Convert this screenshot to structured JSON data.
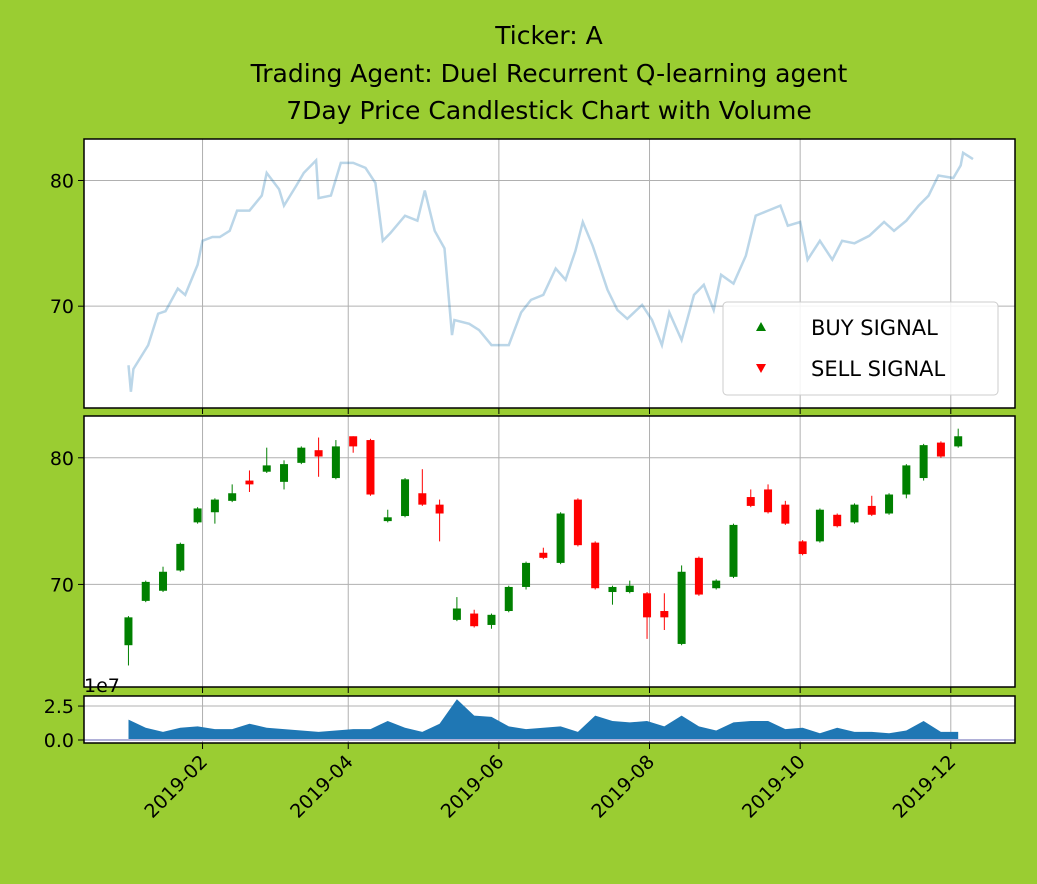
{
  "title": [
    "Ticker: A",
    "Trading Agent: Duel Recurrent Q-learning agent",
    "7Day Price Candlestick Chart with Volume"
  ],
  "chart_data": [
    {
      "type": "line",
      "x": [
        "2019-01-02",
        "2019-01-03",
        "2019-01-04",
        "2019-01-10",
        "2019-01-14",
        "2019-01-17",
        "2019-01-22",
        "2019-01-25",
        "2019-01-30",
        "2019-02-01",
        "2019-02-05",
        "2019-02-08",
        "2019-02-12",
        "2019-02-15",
        "2019-02-20",
        "2019-02-25",
        "2019-02-27",
        "2019-03-04",
        "2019-03-06",
        "2019-03-11",
        "2019-03-14",
        "2019-03-19",
        "2019-03-20",
        "2019-03-25",
        "2019-03-29",
        "2019-04-03",
        "2019-04-08",
        "2019-04-12",
        "2019-04-15",
        "2019-04-18",
        "2019-04-24",
        "2019-04-29",
        "2019-05-02",
        "2019-05-06",
        "2019-05-10",
        "2019-05-13",
        "2019-05-14",
        "2019-05-20",
        "2019-05-24",
        "2019-05-29",
        "2019-06-05",
        "2019-06-10",
        "2019-06-14",
        "2019-06-19",
        "2019-06-24",
        "2019-06-28",
        "2019-07-02",
        "2019-07-05",
        "2019-07-09",
        "2019-07-15",
        "2019-07-19",
        "2019-07-23",
        "2019-07-29",
        "2019-08-02",
        "2019-08-06",
        "2019-08-09",
        "2019-08-14",
        "2019-08-19",
        "2019-08-23",
        "2019-08-27",
        "2019-08-30",
        "2019-09-04",
        "2019-09-09",
        "2019-09-13",
        "2019-09-18",
        "2019-09-23",
        "2019-09-26",
        "2019-10-01",
        "2019-10-04",
        "2019-10-09",
        "2019-10-14",
        "2019-10-18",
        "2019-10-23",
        "2019-10-29",
        "2019-11-04",
        "2019-11-08",
        "2019-11-13",
        "2019-11-18",
        "2019-11-22",
        "2019-11-26",
        "2019-12-02",
        "2019-12-05",
        "2019-12-06",
        "2019-12-10"
      ],
      "values": [
        65.3,
        63.2,
        65.0,
        66.9,
        69.4,
        69.6,
        71.4,
        70.9,
        73.3,
        75.2,
        75.5,
        75.5,
        76.0,
        77.6,
        77.6,
        78.8,
        80.6,
        79.3,
        78.0,
        79.6,
        80.6,
        81.6,
        78.6,
        78.8,
        81.4,
        81.4,
        81.0,
        79.8,
        75.2,
        75.8,
        77.2,
        76.8,
        79.2,
        76.0,
        74.6,
        67.7,
        68.9,
        68.6,
        68.1,
        66.9,
        66.9,
        69.5,
        70.5,
        70.9,
        73.0,
        72.1,
        74.4,
        76.7,
        74.8,
        71.3,
        69.7,
        69.0,
        70.1,
        68.9,
        66.9,
        69.5,
        67.3,
        70.9,
        71.7,
        69.7,
        72.5,
        71.8,
        74.0,
        77.2,
        77.6,
        78.0,
        76.4,
        76.7,
        73.7,
        75.2,
        73.7,
        75.2,
        75.0,
        75.6,
        76.7,
        76.0,
        76.8,
        78.0,
        78.8,
        80.4,
        80.2,
        81.2,
        82.2,
        81.7
      ],
      "color": "#1f77b4",
      "alpha": 0.3,
      "xlim": [
        "2018-12-15",
        "2019-12-27"
      ],
      "ylim": [
        61.9,
        83.3
      ],
      "yticks": [
        70,
        80
      ],
      "grid": true,
      "legend": [
        {
          "name": "BUY SIGNAL",
          "color": "green",
          "marker": "^"
        },
        {
          "name": "SELL SIGNAL",
          "color": "red",
          "marker": "v"
        }
      ],
      "legend_loc": "lower right"
    },
    {
      "type": "candlestick",
      "x": [
        "2019-01-02",
        "2019-01-09",
        "2019-01-16",
        "2019-01-23",
        "2019-01-30",
        "2019-02-06",
        "2019-02-13",
        "2019-02-20",
        "2019-02-27",
        "2019-03-06",
        "2019-03-13",
        "2019-03-20",
        "2019-03-27",
        "2019-04-03",
        "2019-04-10",
        "2019-04-17",
        "2019-04-24",
        "2019-05-01",
        "2019-05-08",
        "2019-05-15",
        "2019-05-22",
        "2019-05-29",
        "2019-06-05",
        "2019-06-12",
        "2019-06-19",
        "2019-06-26",
        "2019-07-03",
        "2019-07-10",
        "2019-07-17",
        "2019-07-24",
        "2019-07-31",
        "2019-08-07",
        "2019-08-14",
        "2019-08-21",
        "2019-08-28",
        "2019-09-04",
        "2019-09-11",
        "2019-09-18",
        "2019-09-25",
        "2019-10-02",
        "2019-10-09",
        "2019-10-16",
        "2019-10-23",
        "2019-10-30",
        "2019-11-06",
        "2019-11-13",
        "2019-11-20",
        "2019-11-27",
        "2019-12-04"
      ],
      "open": [
        65.2,
        68.7,
        69.5,
        71.1,
        74.9,
        75.7,
        76.6,
        78.2,
        78.9,
        78.1,
        79.6,
        80.6,
        78.4,
        81.7,
        81.4,
        75.0,
        75.4,
        77.2,
        76.3,
        67.2,
        67.7,
        66.8,
        67.9,
        69.8,
        72.5,
        71.7,
        76.7,
        73.3,
        69.4,
        69.4,
        69.3,
        67.9,
        65.3,
        72.1,
        69.7,
        70.6,
        76.9,
        77.5,
        76.3,
        73.4,
        73.4,
        75.5,
        74.9,
        76.2,
        75.6,
        77.1,
        78.4,
        81.2,
        80.9
      ],
      "high": [
        67.5,
        70.3,
        71.4,
        73.3,
        76.1,
        76.8,
        77.9,
        79.0,
        80.8,
        79.8,
        80.9,
        81.6,
        81.4,
        81.7,
        81.5,
        75.9,
        78.4,
        79.1,
        76.7,
        69.0,
        68.0,
        67.7,
        69.9,
        71.8,
        72.9,
        75.7,
        76.8,
        73.4,
        69.9,
        70.3,
        69.4,
        69.3,
        71.5,
        72.2,
        70.4,
        74.8,
        77.5,
        77.9,
        76.6,
        73.5,
        76.0,
        75.6,
        76.4,
        77.0,
        77.2,
        79.5,
        81.1,
        81.3,
        82.3
      ],
      "low": [
        63.6,
        68.6,
        69.4,
        71.0,
        74.8,
        74.8,
        76.5,
        77.3,
        78.8,
        77.5,
        79.5,
        78.5,
        78.3,
        80.4,
        77.0,
        74.9,
        75.3,
        76.2,
        73.4,
        67.1,
        66.6,
        66.5,
        67.8,
        69.6,
        72.0,
        71.6,
        73.0,
        69.6,
        68.4,
        69.3,
        65.7,
        66.4,
        65.2,
        69.1,
        69.6,
        70.5,
        76.1,
        75.6,
        74.7,
        72.3,
        73.3,
        74.5,
        74.8,
        75.4,
        75.5,
        76.8,
        78.2,
        80.0,
        80.8
      ],
      "close": [
        67.4,
        70.2,
        71.0,
        73.2,
        76.0,
        76.7,
        77.2,
        77.9,
        79.4,
        79.5,
        80.8,
        80.1,
        80.9,
        80.9,
        77.1,
        75.3,
        78.3,
        76.3,
        75.6,
        68.1,
        66.7,
        67.6,
        69.8,
        71.7,
        72.1,
        75.6,
        73.1,
        69.7,
        69.8,
        69.9,
        67.4,
        67.4,
        71.0,
        69.2,
        70.3,
        74.7,
        76.2,
        75.7,
        74.8,
        72.4,
        75.9,
        74.6,
        76.3,
        75.5,
        77.1,
        79.4,
        81.0,
        80.1,
        81.7
      ],
      "up_color": "green",
      "down_color": "red",
      "xlim": [
        "2018-12-15",
        "2019-12-27"
      ],
      "ylim": [
        61.9,
        83.3
      ],
      "yticks": [
        70,
        80
      ],
      "grid": true
    },
    {
      "type": "area",
      "x": [
        "2019-01-02",
        "2019-01-09",
        "2019-01-16",
        "2019-01-23",
        "2019-01-30",
        "2019-02-06",
        "2019-02-13",
        "2019-02-20",
        "2019-02-27",
        "2019-03-06",
        "2019-03-13",
        "2019-03-20",
        "2019-03-27",
        "2019-04-03",
        "2019-04-10",
        "2019-04-17",
        "2019-04-24",
        "2019-05-01",
        "2019-05-08",
        "2019-05-15",
        "2019-05-22",
        "2019-05-29",
        "2019-06-05",
        "2019-06-12",
        "2019-06-19",
        "2019-06-26",
        "2019-07-03",
        "2019-07-10",
        "2019-07-17",
        "2019-07-24",
        "2019-07-31",
        "2019-08-07",
        "2019-08-14",
        "2019-08-21",
        "2019-08-28",
        "2019-09-04",
        "2019-09-11",
        "2019-09-18",
        "2019-09-25",
        "2019-10-02",
        "2019-10-09",
        "2019-10-16",
        "2019-10-23",
        "2019-10-30",
        "2019-11-06",
        "2019-11-13",
        "2019-11-20",
        "2019-11-27",
        "2019-12-04"
      ],
      "values": [
        1.5,
        0.9,
        0.6,
        0.9,
        1.0,
        0.8,
        0.8,
        1.2,
        0.9,
        0.8,
        0.7,
        0.6,
        0.7,
        0.8,
        0.8,
        1.4,
        0.9,
        0.6,
        1.2,
        3.0,
        1.8,
        1.7,
        1.0,
        0.8,
        0.9,
        1.0,
        0.6,
        1.8,
        1.4,
        1.3,
        1.4,
        1.0,
        1.8,
        1.0,
        0.7,
        1.3,
        1.4,
        1.4,
        0.8,
        0.9,
        0.5,
        0.9,
        0.6,
        0.6,
        0.5,
        0.7,
        1.4,
        0.6,
        0.6
      ],
      "color": "#1f77b4",
      "offset_label": "1e7",
      "xlim": [
        "2018-12-15",
        "2019-12-27"
      ],
      "ylim": [
        -0.22,
        3.24
      ],
      "yticks": [
        {
          "value": 0,
          "label": "0.0"
        },
        2.5
      ],
      "xticks": [
        "2019-02",
        "2019-04",
        "2019-06",
        "2019-08",
        "2019-10",
        "2019-12"
      ],
      "grid": true
    }
  ]
}
